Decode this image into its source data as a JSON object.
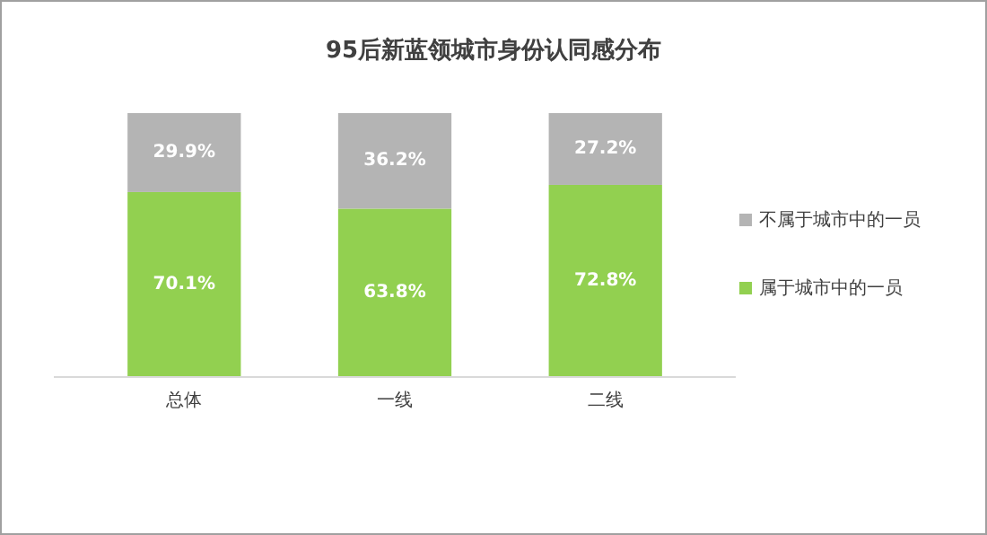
{
  "chart_data": {
    "type": "bar",
    "title": "95后新蓝领城市身份认同感分布",
    "categories": [
      "总体",
      "一线",
      "二线"
    ],
    "stacked": true,
    "legend": "right",
    "series": [
      {
        "name": "属于城市中的一员",
        "color": "#92d050",
        "values": [
          70.1,
          63.8,
          72.8
        ],
        "value_labels": [
          "70.1%",
          "63.8%",
          "72.8%"
        ]
      },
      {
        "name": "不属于城市中的一员",
        "color": "#b4b4b4",
        "values": [
          29.9,
          36.2,
          27.2
        ],
        "value_labels": [
          "29.9%",
          "36.2%",
          "27.2%"
        ]
      }
    ]
  }
}
